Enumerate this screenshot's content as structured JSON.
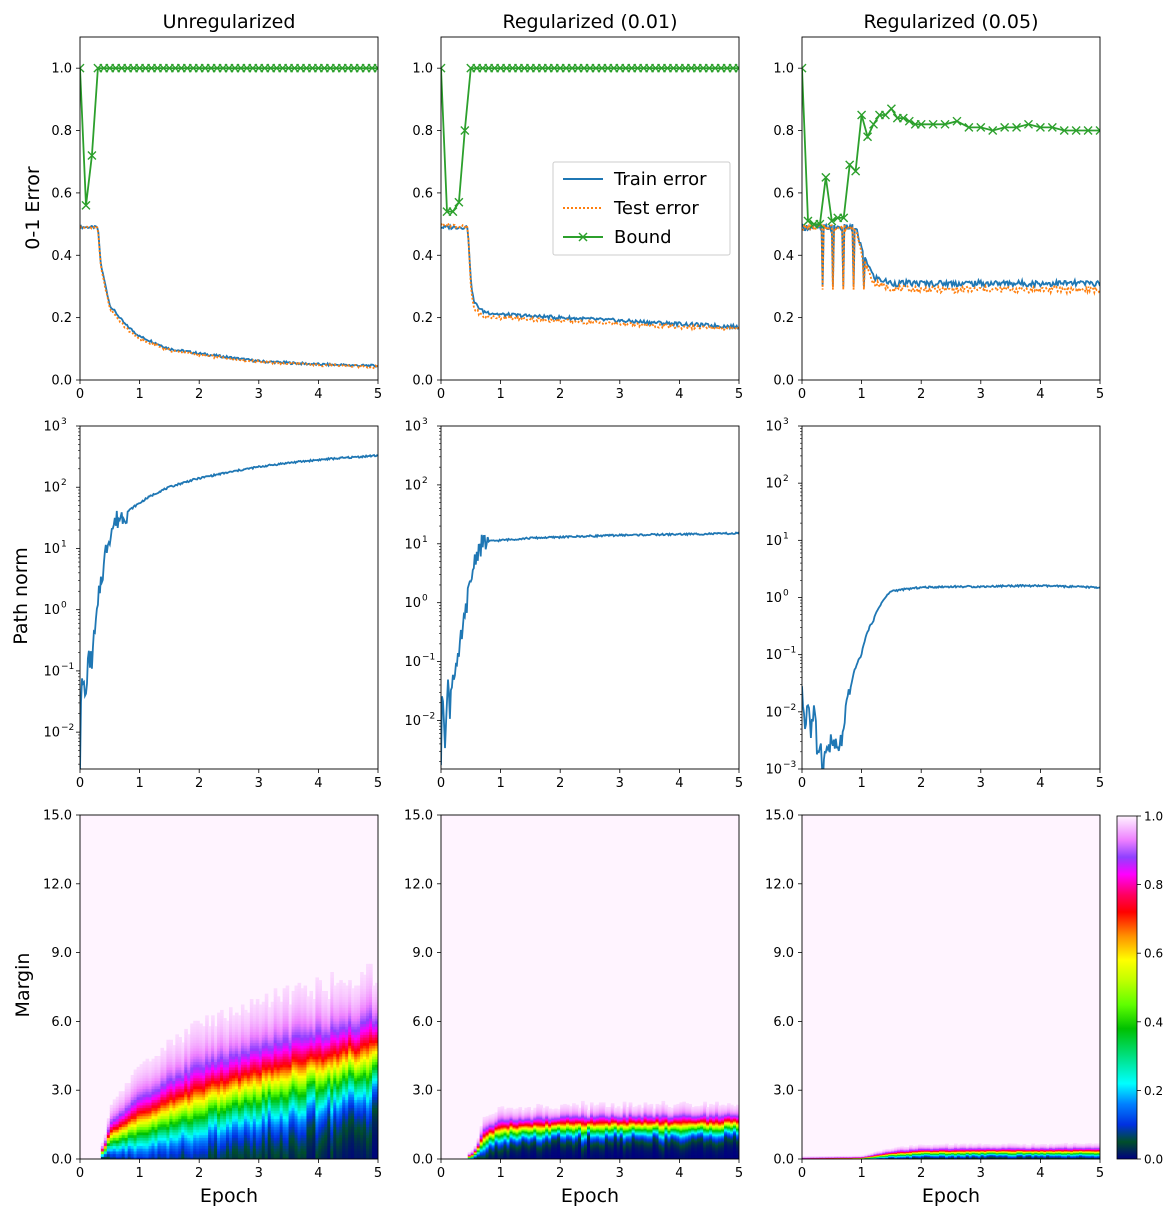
{
  "column_titles": [
    "Unregularized",
    "Regularized (0.01)",
    "Regularized (0.05)"
  ],
  "row_labels": {
    "error": "0-1 Error",
    "path_norm": "Path norm",
    "margin": "Margin"
  },
  "x_axis_label": "Epoch",
  "legend": {
    "train": "Train error",
    "test": "Test error",
    "bound": "Bound",
    "placement": "upper-right of middle top panel"
  },
  "colors": {
    "train": "#1f77b4",
    "test": "#ff7f0e",
    "bound": "#2ca02c"
  },
  "colorbar": {
    "ticks": [
      "0.0",
      "0.2",
      "0.4",
      "0.6",
      "0.8",
      "1.0"
    ],
    "colormap": "gist_ncar-like"
  },
  "chart_data": [
    {
      "type": "line",
      "title": "Unregularized",
      "xlabel": "",
      "ylabel": "0-1 Error",
      "xlim": [
        0,
        5
      ],
      "ylim": [
        0,
        1.1
      ],
      "xticks": [
        "0",
        "1",
        "2",
        "3",
        "4",
        "5"
      ],
      "yticks": [
        "0.0",
        "0.2",
        "0.4",
        "0.6",
        "0.8",
        "1.0"
      ],
      "x": [
        0,
        0.1,
        0.2,
        0.3,
        0.35,
        0.5,
        0.75,
        1,
        1.5,
        2,
        3,
        4,
        5
      ],
      "series": [
        {
          "name": "Train error",
          "style": "solid",
          "values": [
            0.49,
            0.49,
            0.49,
            0.49,
            0.37,
            0.24,
            0.18,
            0.14,
            0.1,
            0.085,
            0.06,
            0.05,
            0.045
          ]
        },
        {
          "name": "Test error",
          "style": "dotted",
          "values": [
            0.49,
            0.49,
            0.49,
            0.49,
            0.36,
            0.23,
            0.17,
            0.13,
            0.095,
            0.08,
            0.058,
            0.048,
            0.042
          ]
        },
        {
          "name": "Bound",
          "style": "markers",
          "x": [
            0,
            0.1,
            0.2,
            0.3,
            0.4,
            5
          ],
          "values": [
            1.0,
            0.56,
            0.72,
            1.0,
            1.0,
            1.0
          ]
        }
      ]
    },
    {
      "type": "line",
      "title": "Regularized (0.01)",
      "xlabel": "",
      "ylabel": "",
      "xlim": [
        0,
        5
      ],
      "ylim": [
        0,
        1.1
      ],
      "xticks": [
        "0",
        "1",
        "2",
        "3",
        "4",
        "5"
      ],
      "yticks": [
        "0.0",
        "0.2",
        "0.4",
        "0.6",
        "0.8",
        "1.0"
      ],
      "x": [
        0,
        0.45,
        0.5,
        0.55,
        0.7,
        1,
        2,
        3,
        4,
        5
      ],
      "series": [
        {
          "name": "Train error",
          "style": "solid",
          "values": [
            0.49,
            0.49,
            0.32,
            0.25,
            0.22,
            0.21,
            0.2,
            0.19,
            0.18,
            0.17
          ]
        },
        {
          "name": "Test error",
          "style": "dotted",
          "values": [
            0.5,
            0.49,
            0.3,
            0.23,
            0.205,
            0.2,
            0.19,
            0.18,
            0.17,
            0.165
          ]
        },
        {
          "name": "Bound",
          "style": "markers",
          "x": [
            0,
            0.1,
            0.2,
            0.3,
            0.4,
            0.5,
            5
          ],
          "values": [
            1.0,
            0.54,
            0.54,
            0.57,
            0.8,
            1.0,
            1.0
          ]
        }
      ]
    },
    {
      "type": "line",
      "title": "Regularized (0.05)",
      "xlabel": "",
      "ylabel": "",
      "xlim": [
        0,
        5
      ],
      "ylim": [
        0,
        1.1
      ],
      "xticks": [
        "0",
        "1",
        "2",
        "3",
        "4",
        "5"
      ],
      "yticks": [
        "0.0",
        "0.2",
        "0.4",
        "0.6",
        "0.8",
        "1.0"
      ],
      "x": [
        0,
        0.9,
        1.0,
        1.2,
        1.5,
        2,
        3,
        4,
        5
      ],
      "series": [
        {
          "name": "Train error",
          "style": "solid",
          "values": [
            0.49,
            0.49,
            0.42,
            0.33,
            0.31,
            0.31,
            0.31,
            0.31,
            0.31
          ]
        },
        {
          "name": "Test error",
          "style": "dotted",
          "values": [
            0.49,
            0.49,
            0.4,
            0.31,
            0.295,
            0.29,
            0.29,
            0.29,
            0.29
          ]
        },
        {
          "name": "Bound",
          "style": "markers",
          "x": [
            0,
            0.1,
            0.2,
            0.3,
            0.4,
            0.5,
            0.6,
            0.7,
            0.8,
            0.9,
            1.0,
            1.1,
            1.2,
            1.3,
            1.4,
            1.5,
            1.6,
            1.7,
            1.8,
            1.9,
            2.0,
            2.2,
            2.4,
            2.6,
            2.8,
            3.0,
            3.2,
            3.4,
            3.6,
            3.8,
            4.0,
            4.2,
            4.4,
            4.6,
            4.8,
            5.0
          ],
          "values": [
            1.0,
            0.51,
            0.5,
            0.5,
            0.65,
            0.51,
            0.52,
            0.52,
            0.69,
            0.67,
            0.85,
            0.78,
            0.82,
            0.85,
            0.85,
            0.87,
            0.84,
            0.84,
            0.83,
            0.82,
            0.82,
            0.82,
            0.82,
            0.83,
            0.81,
            0.81,
            0.8,
            0.81,
            0.81,
            0.82,
            0.81,
            0.81,
            0.8,
            0.8,
            0.8,
            0.8
          ]
        }
      ]
    },
    {
      "type": "line",
      "title": "",
      "xlabel": "",
      "ylabel": "Path norm",
      "yscale": "log",
      "xlim": [
        0,
        5
      ],
      "ylim": [
        0.0025,
        1000
      ],
      "xticks": [
        "0",
        "1",
        "2",
        "3",
        "4",
        "5"
      ],
      "yticks_exp": [
        -2,
        -1,
        0,
        1,
        2,
        3
      ],
      "series": [
        {
          "name": "",
          "x": [
            0,
            0.02,
            0.05,
            0.1,
            0.12,
            0.15,
            0.2,
            0.25,
            0.3,
            0.4,
            0.5,
            0.6,
            0.8,
            1,
            1.5,
            2,
            2.5,
            3,
            3.5,
            4,
            4.5,
            5
          ],
          "values": [
            0.003,
            0.05,
            0.06,
            0.035,
            0.1,
            0.15,
            0.15,
            0.4,
            1.0,
            5,
            17,
            28,
            40,
            55,
            100,
            140,
            175,
            215,
            250,
            280,
            305,
            330
          ]
        }
      ]
    },
    {
      "type": "line",
      "title": "",
      "xlabel": "",
      "ylabel": "",
      "yscale": "log",
      "xlim": [
        0,
        5
      ],
      "ylim": [
        0.0015,
        1000
      ],
      "xticks": [
        "0",
        "1",
        "2",
        "3",
        "4",
        "5"
      ],
      "yticks_exp": [
        -2,
        -1,
        0,
        1,
        2,
        3
      ],
      "series": [
        {
          "name": "",
          "x": [
            0,
            0.03,
            0.06,
            0.1,
            0.12,
            0.15,
            0.2,
            0.3,
            0.4,
            0.5,
            0.6,
            0.7,
            0.8,
            1,
            1.5,
            2,
            3,
            4,
            5
          ],
          "values": [
            0.002,
            0.03,
            0.002,
            0.02,
            0.04,
            0.015,
            0.06,
            0.1,
            0.5,
            2,
            7,
            10,
            11,
            11.5,
            12.5,
            13,
            14,
            14.5,
            15
          ]
        }
      ]
    },
    {
      "type": "line",
      "title": "",
      "xlabel": "",
      "ylabel": "",
      "yscale": "log",
      "xlim": [
        0,
        5
      ],
      "ylim": [
        0.001,
        1000
      ],
      "xticks": [
        "0",
        "1",
        "2",
        "3",
        "4",
        "5"
      ],
      "yticks_exp": [
        -3,
        -2,
        -1,
        0,
        1,
        2,
        3
      ],
      "series": [
        {
          "name": "",
          "x": [
            0,
            0.05,
            0.1,
            0.15,
            0.2,
            0.25,
            0.3,
            0.35,
            0.4,
            0.5,
            0.6,
            0.7,
            0.8,
            1,
            1.2,
            1.5,
            2,
            2.5,
            3,
            3.5,
            4,
            4.5,
            5
          ],
          "values": [
            0.02,
            0.005,
            0.015,
            0.004,
            0.01,
            0.002,
            0.003,
            0.0009,
            0.002,
            0.003,
            0.002,
            0.004,
            0.02,
            0.1,
            0.4,
            1.3,
            1.5,
            1.55,
            1.55,
            1.6,
            1.6,
            1.55,
            1.5
          ]
        }
      ]
    },
    {
      "type": "heatmap",
      "title": "",
      "xlabel": "Epoch",
      "ylabel": "Margin",
      "xlim": [
        0,
        5
      ],
      "ylim": [
        0,
        15
      ],
      "xticks": [
        "0",
        "1",
        "2",
        "3",
        "4",
        "5"
      ],
      "yticks": [
        "0.0",
        "3.0",
        "6.0",
        "9.0",
        "12.0",
        "15.0"
      ],
      "description_x": [
        0.4,
        0.5,
        1,
        2,
        3,
        4,
        5
      ],
      "level_0_5_margin": [
        0.3,
        0.9,
        1.4,
        2.3,
        3.0,
        3.6,
        4.3
      ],
      "level_0_9_margin": [
        0.5,
        1.6,
        2.8,
        4.2,
        5.0,
        5.6,
        6.3
      ]
    },
    {
      "type": "heatmap",
      "title": "",
      "xlabel": "Epoch",
      "ylabel": "",
      "xlim": [
        0,
        5
      ],
      "ylim": [
        0,
        15
      ],
      "xticks": [
        "0",
        "1",
        "2",
        "3",
        "4",
        "5"
      ],
      "yticks": [
        "0.0",
        "3.0",
        "6.0",
        "9.0",
        "12.0",
        "15.0"
      ],
      "description_x": [
        0.5,
        0.6,
        0.7,
        1,
        2,
        3,
        4,
        5
      ],
      "level_0_5_margin": [
        0.1,
        0.3,
        0.8,
        1.2,
        1.35,
        1.4,
        1.4,
        1.45
      ],
      "level_0_9_margin": [
        0.2,
        0.5,
        1.3,
        1.7,
        1.85,
        1.9,
        1.9,
        1.95
      ]
    },
    {
      "type": "heatmap",
      "title": "",
      "xlabel": "Epoch",
      "ylabel": "",
      "xlim": [
        0,
        5
      ],
      "ylim": [
        0,
        15
      ],
      "xticks": [
        "0",
        "1",
        "2",
        "3",
        "4",
        "5"
      ],
      "yticks": [
        "0.0",
        "3.0",
        "6.0",
        "9.0",
        "12.0",
        "15.0"
      ],
      "description_x": [
        0,
        1,
        1.5,
        2,
        3,
        4,
        5
      ],
      "level_0_5_margin": [
        0.02,
        0.05,
        0.2,
        0.28,
        0.3,
        0.3,
        0.3
      ],
      "level_0_9_margin": [
        0.04,
        0.1,
        0.35,
        0.45,
        0.48,
        0.48,
        0.5
      ]
    }
  ]
}
